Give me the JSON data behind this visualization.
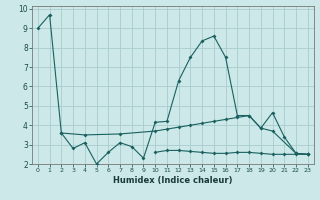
{
  "xlabel": "Humidex (Indice chaleur)",
  "bg_color": "#cce8e8",
  "grid_color": "#aacccc",
  "line_color": "#1a6060",
  "x": [
    0,
    1,
    2,
    3,
    4,
    5,
    6,
    7,
    8,
    9,
    10,
    11,
    12,
    13,
    14,
    15,
    16,
    17,
    18,
    19,
    20,
    21,
    22,
    23
  ],
  "main_line": [
    9.0,
    9.7,
    3.6,
    2.8,
    3.1,
    2.0,
    2.6,
    3.1,
    2.9,
    2.3,
    4.15,
    4.2,
    6.3,
    7.5,
    8.35,
    8.6,
    7.5,
    4.5,
    4.5,
    3.85,
    4.65,
    3.4,
    2.55,
    2.5
  ],
  "line2": [
    null,
    null,
    3.6,
    null,
    3.5,
    null,
    null,
    3.55,
    null,
    null,
    3.7,
    3.8,
    3.9,
    4.0,
    4.1,
    4.2,
    4.3,
    4.4,
    4.5,
    3.85,
    3.7,
    null,
    2.55,
    2.5
  ],
  "line3": [
    null,
    null,
    null,
    null,
    null,
    null,
    null,
    null,
    null,
    null,
    2.6,
    2.7,
    2.7,
    2.65,
    2.6,
    2.55,
    2.55,
    2.6,
    2.6,
    2.55,
    2.5,
    2.5,
    2.5,
    2.5
  ],
  "ylim": [
    2,
    10
  ],
  "xlim": [
    -0.5,
    23.5
  ],
  "yticks": [
    2,
    3,
    4,
    5,
    6,
    7,
    8,
    9,
    10
  ],
  "xticks": [
    0,
    1,
    2,
    3,
    4,
    5,
    6,
    7,
    8,
    9,
    10,
    11,
    12,
    13,
    14,
    15,
    16,
    17,
    18,
    19,
    20,
    21,
    22,
    23
  ]
}
